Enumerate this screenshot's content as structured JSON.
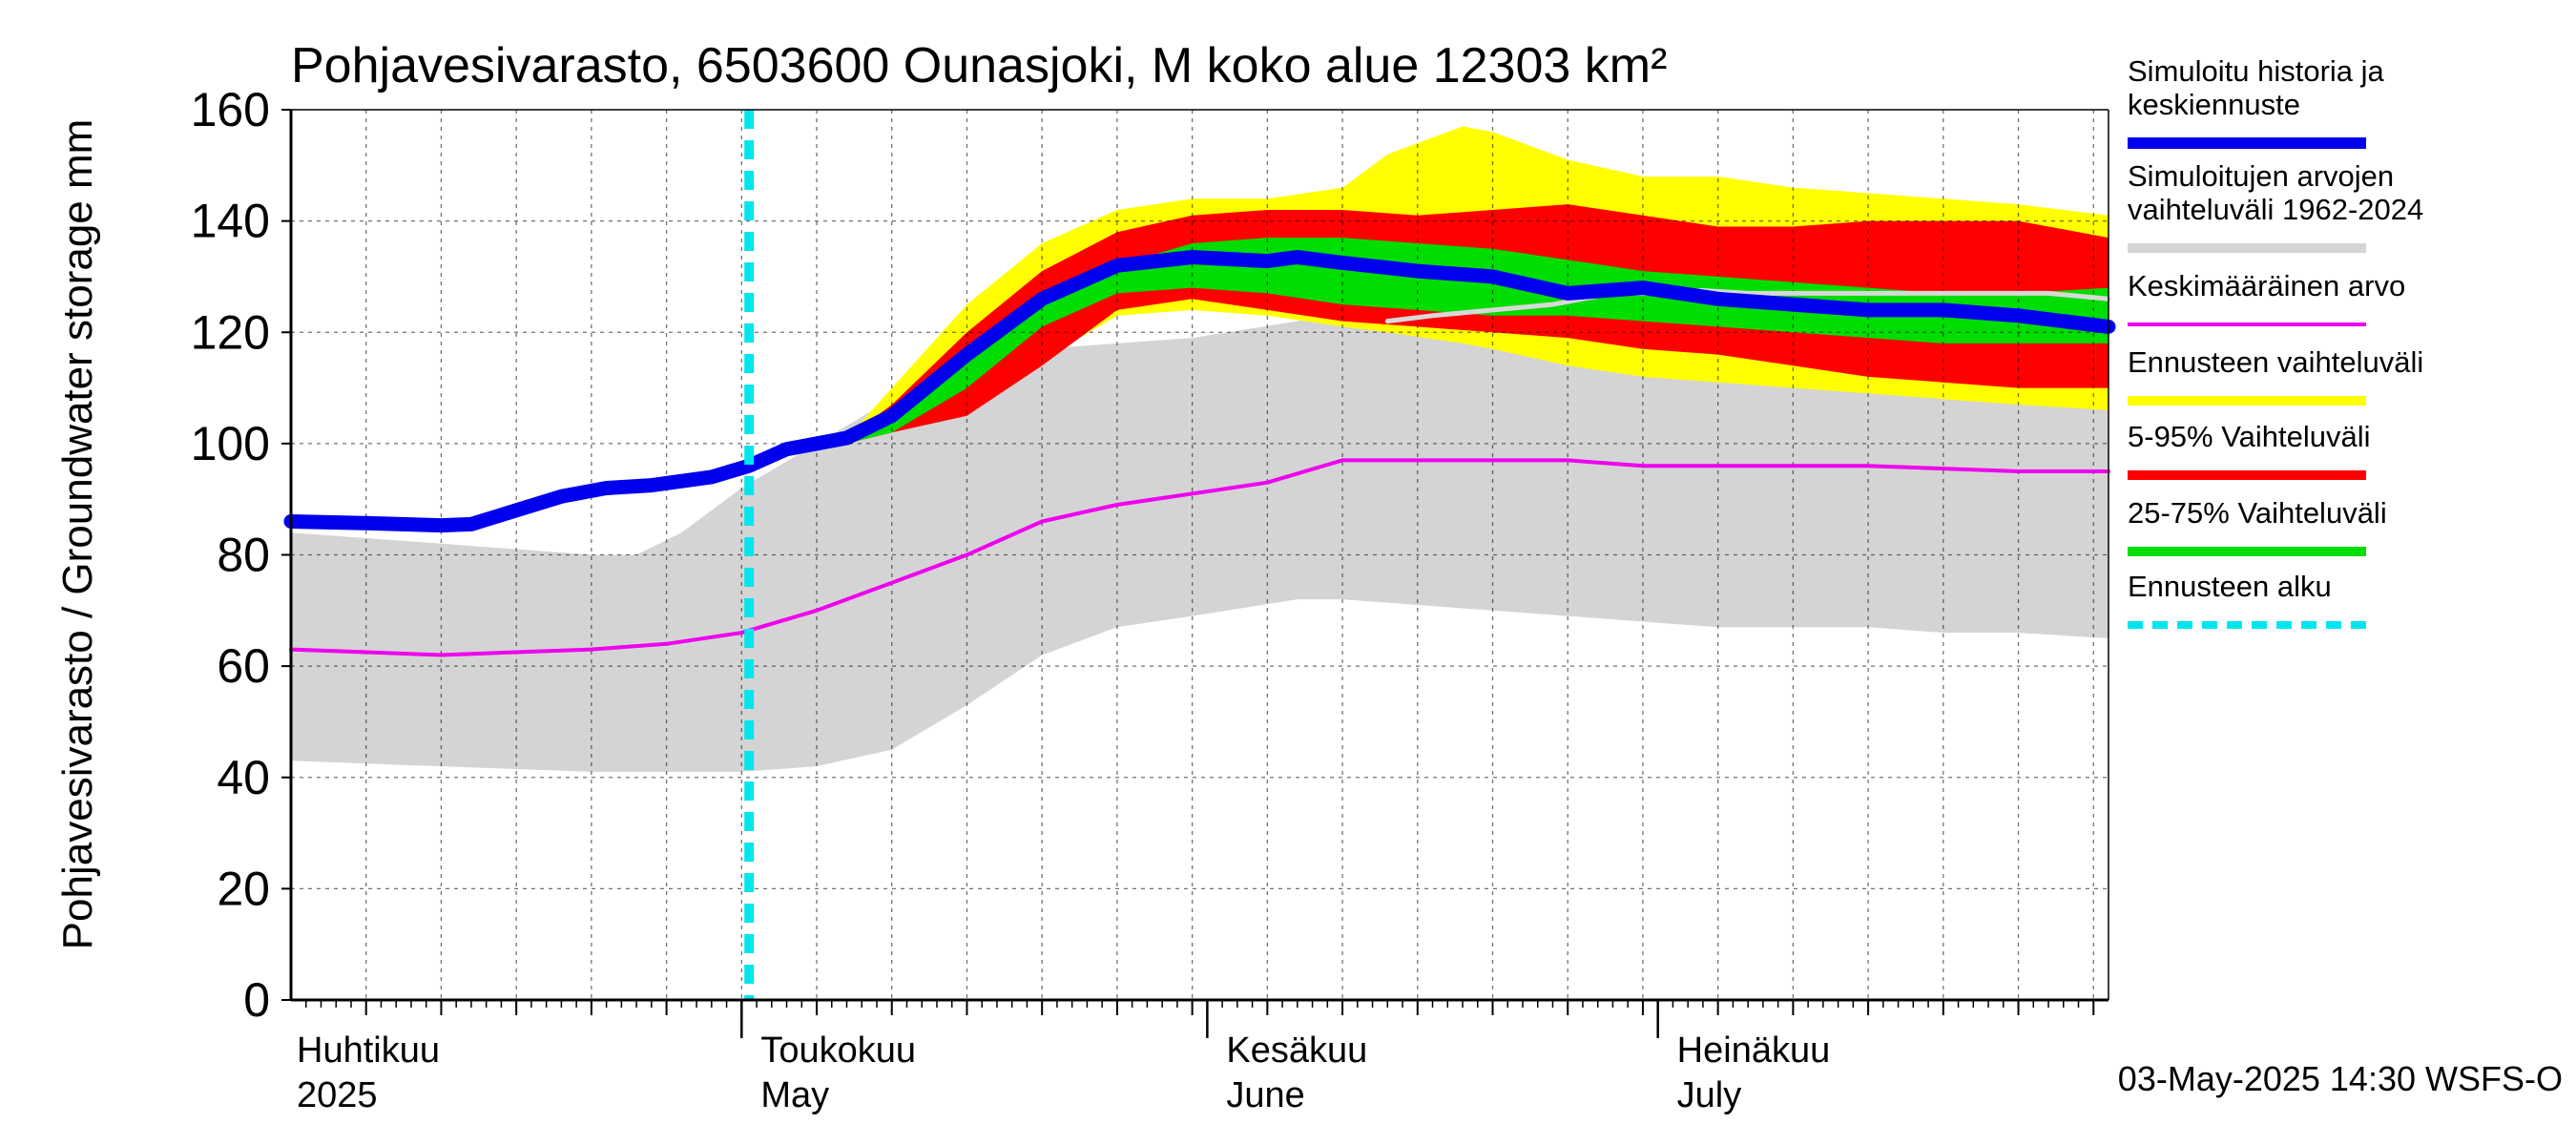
{
  "chart_data": {
    "type": "area",
    "title": "Pohjavesivarasto, 6503600 Ounasjoki, M koko alue 12303 km²",
    "ylabel": "Pohjavesivarasto / Groundwater storage   mm",
    "ylim": [
      0,
      160
    ],
    "yticks": [
      0,
      20,
      40,
      60,
      80,
      100,
      120,
      140,
      160
    ],
    "ytick_labels": [
      "0",
      "20",
      "40",
      "60",
      "80",
      "100",
      "120",
      "140",
      "160"
    ],
    "xlim_days": [
      0,
      121
    ],
    "grid": true,
    "month_labels": [
      {
        "day": 0,
        "fi": "Huhtikuu",
        "en": "2025"
      },
      {
        "day": 30,
        "fi": "Toukokuu",
        "en": "May"
      },
      {
        "day": 61,
        "fi": "Kesäkuu",
        "en": "June"
      },
      {
        "day": 91,
        "fi": "Heinäkuu",
        "en": "July"
      }
    ],
    "forecast_start_day": 30.5,
    "timestamp": "03-May-2025 14:30 WSFS-O",
    "legend": [
      {
        "label": "Simuloitu historia ja keskiennuste",
        "color": "#0000ee",
        "style": "line"
      },
      {
        "label": "Simuloitujen arvojen vaihteluväli 1962-2024",
        "color": "#d4d4d4",
        "style": "band"
      },
      {
        "label": "Keskimääräinen arvo",
        "color": "#ee00ee",
        "style": "line"
      },
      {
        "label": "Ennusteen vaihteluväli",
        "color": "#ffff00",
        "style": "band"
      },
      {
        "label": "5-95% Vaihteluväli",
        "color": "#ff0000",
        "style": "band"
      },
      {
        "label": "25-75% Vaihteluväli",
        "color": "#00dd00",
        "style": "band"
      },
      {
        "label": "Ennusteen alku",
        "color": "#00e5ee",
        "style": "dashed"
      }
    ],
    "series": [
      {
        "name": "Simuloitujen arvojen vaihteluväli 1962-2024",
        "kind": "band",
        "color": "#d4d4d4",
        "x": [
          0,
          10,
          20,
          23,
          26,
          30,
          35,
          40,
          45,
          50,
          55,
          60,
          67,
          70,
          75,
          80,
          85,
          90,
          95,
          100,
          105,
          110,
          115,
          121
        ],
        "lower": [
          43,
          42,
          41,
          41,
          41,
          41,
          42,
          45,
          53,
          62,
          67,
          69,
          72,
          72,
          71,
          70,
          69,
          68,
          67,
          67,
          67,
          66,
          66,
          65
        ],
        "upper": [
          84,
          82,
          80,
          80,
          84,
          92,
          100,
          108,
          113,
          117,
          118,
          119,
          122,
          124,
          122,
          118,
          115,
          113,
          112,
          111,
          110,
          109,
          108,
          106
        ]
      },
      {
        "name": "Ennusteen vaihteluväli",
        "kind": "band",
        "color": "#ffff00",
        "x": [
          30.5,
          33,
          37,
          40,
          45,
          50,
          55,
          60,
          65,
          70,
          73,
          78,
          80,
          85,
          90,
          95,
          100,
          105,
          110,
          115,
          121
        ],
        "lower": [
          97,
          98.5,
          100,
          103,
          108,
          115,
          123,
          124,
          123,
          121,
          120,
          118,
          117,
          114,
          112,
          111,
          110,
          109,
          108,
          107,
          106
        ],
        "upper": [
          97,
          98.5,
          101,
          110,
          125,
          136,
          142,
          144,
          144,
          146,
          152,
          157,
          156,
          151,
          148,
          148,
          146,
          145,
          144,
          143,
          141
        ]
      },
      {
        "name": "5-95% Vaihteluväli",
        "kind": "band",
        "color": "#ff0000",
        "x": [
          30.5,
          33,
          37,
          40,
          45,
          50,
          55,
          60,
          65,
          70,
          75,
          80,
          85,
          90,
          95,
          100,
          105,
          110,
          115,
          121
        ],
        "lower": [
          97,
          98.5,
          100,
          102,
          105,
          114,
          124,
          126,
          124,
          122,
          121,
          120,
          119,
          117,
          116,
          114,
          112,
          111,
          110,
          110
        ],
        "upper": [
          97,
          98.5,
          101,
          107,
          120,
          131,
          138,
          141,
          142,
          142,
          141,
          142,
          143,
          141,
          139,
          139,
          140,
          140,
          140,
          137
        ]
      },
      {
        "name": "25-75% Vaihteluväli",
        "kind": "band",
        "color": "#00dd00",
        "x": [
          30.5,
          33,
          37,
          40,
          45,
          50,
          55,
          60,
          65,
          70,
          75,
          80,
          85,
          90,
          95,
          100,
          105,
          110,
          115,
          121
        ],
        "lower": [
          97,
          98.5,
          100,
          102,
          110,
          121,
          127,
          128,
          127,
          125,
          124,
          123,
          123,
          122,
          121,
          120,
          119,
          118,
          118,
          118
        ],
        "upper": [
          97,
          98.5,
          101,
          104,
          116,
          127,
          132,
          136,
          137,
          137,
          136,
          135,
          133,
          131,
          130,
          129,
          128,
          127,
          127,
          128
        ]
      },
      {
        "name": "Keskimääräinen arvo",
        "kind": "line",
        "color": "#ee00ee",
        "x": [
          0,
          5,
          10,
          15,
          20,
          25,
          30,
          35,
          40,
          45,
          50,
          55,
          60,
          65,
          70,
          75,
          80,
          85,
          90,
          95,
          100,
          105,
          110,
          115,
          121
        ],
        "y": [
          63,
          62.5,
          62,
          62.5,
          63,
          64,
          66,
          70,
          75,
          80,
          86,
          89,
          91,
          93,
          97,
          97,
          97,
          97,
          96,
          96,
          96,
          96,
          95.5,
          95,
          95
        ]
      },
      {
        "name": "Simuloitu historia ja keskiennuste",
        "kind": "line",
        "color": "#0000ee",
        "x": [
          0,
          5,
          10,
          12,
          15,
          18,
          21,
          24,
          28,
          30.5,
          33,
          37,
          40,
          45,
          50,
          55,
          60,
          65,
          67,
          70,
          75,
          80,
          85,
          90,
          95,
          100,
          105,
          110,
          115,
          121
        ],
        "y": [
          86,
          85.7,
          85.3,
          85.5,
          88,
          90.5,
          92,
          92.5,
          94,
          96,
          99,
          101,
          105,
          116,
          126,
          132,
          133.5,
          132.8,
          133.5,
          132.5,
          131,
          130,
          127,
          128,
          126,
          125,
          124,
          124,
          123,
          121
        ]
      },
      {
        "name": "Simuloitu keskiarvo (harmaa)",
        "kind": "line",
        "color": "#d8d8d8",
        "x": [
          73,
          76,
          80,
          84,
          88,
          91,
          94,
          97,
          100,
          103,
          106,
          110,
          114,
          117,
          121
        ],
        "y": [
          122,
          123,
          124,
          125,
          127,
          127,
          127.5,
          127,
          127,
          127,
          127,
          127,
          127,
          127,
          126
        ]
      }
    ]
  }
}
